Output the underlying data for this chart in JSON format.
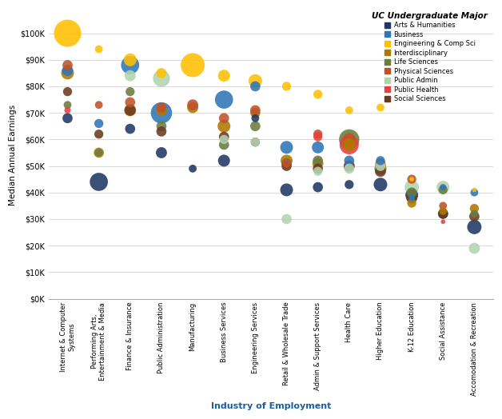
{
  "title": "UC Undergraduate Major",
  "xlabel": "Industry of Employment",
  "ylabel": "Median Annual Earnings",
  "background_color": "#ffffff",
  "industries": [
    "Internet & Computer\nSystems",
    "Performing Arts,\nEntertainment & Media",
    "Finance & Insurance",
    "Public Administration",
    "Manufacturing",
    "Business Services",
    "Engineering Services",
    "Retail & Wholesale Trade",
    "Admin & Support Services",
    "Health Care",
    "Higher Education",
    "K-12 Education",
    "Social Assistance",
    "Accomodation & Recreation"
  ],
  "majors": [
    "Arts & Humanities",
    "Business",
    "Engineering & Comp Sci",
    "Interdisciplinary",
    "Life Sciences",
    "Physical Sciences",
    "Public Admin",
    "Public Health",
    "Social Sciences"
  ],
  "colors": {
    "Arts & Humanities": "#1f3864",
    "Business": "#2e75b6",
    "Engineering & Comp Sci": "#ffc000",
    "Interdisciplinary": "#b07800",
    "Life Sciences": "#6b7c3e",
    "Physical Sciences": "#c0522a",
    "Public Admin": "#b2d4b0",
    "Public Health": "#e84040",
    "Social Sciences": "#6b3a1f"
  },
  "bubbles": [
    {
      "industry": 0,
      "major": "Engineering & Comp Sci",
      "wage": 100000,
      "size": 36
    },
    {
      "industry": 0,
      "major": "Physical Sciences",
      "wage": 88000,
      "size": 5
    },
    {
      "industry": 0,
      "major": "Business",
      "wage": 86000,
      "size": 6
    },
    {
      "industry": 0,
      "major": "Interdisciplinary",
      "wage": 85000,
      "size": 8
    },
    {
      "industry": 0,
      "major": "Social Sciences",
      "wage": 78000,
      "size": 4
    },
    {
      "industry": 0,
      "major": "Life Sciences",
      "wage": 73000,
      "size": 3
    },
    {
      "industry": 0,
      "major": "Public Health",
      "wage": 71000,
      "size": 2
    },
    {
      "industry": 0,
      "major": "Arts & Humanities",
      "wage": 68000,
      "size": 5
    },
    {
      "industry": 1,
      "major": "Engineering & Comp Sci",
      "wage": 94000,
      "size": 3
    },
    {
      "industry": 1,
      "major": "Interdisciplinary",
      "wage": 55000,
      "size": 5
    },
    {
      "industry": 1,
      "major": "Business",
      "wage": 66000,
      "size": 4
    },
    {
      "industry": 1,
      "major": "Physical Sciences",
      "wage": 73000,
      "size": 3
    },
    {
      "industry": 1,
      "major": "Arts & Humanities",
      "wage": 44000,
      "size": 16
    },
    {
      "industry": 1,
      "major": "Life Sciences",
      "wage": 55000,
      "size": 3
    },
    {
      "industry": 1,
      "major": "Social Sciences",
      "wage": 62000,
      "size": 4
    },
    {
      "industry": 2,
      "major": "Engineering & Comp Sci",
      "wage": 90000,
      "size": 8
    },
    {
      "industry": 2,
      "major": "Business",
      "wage": 88000,
      "size": 16
    },
    {
      "industry": 2,
      "major": "Interdisciplinary",
      "wage": 71000,
      "size": 7
    },
    {
      "industry": 2,
      "major": "Physical Sciences",
      "wage": 74000,
      "size": 5
    },
    {
      "industry": 2,
      "major": "Social Sciences",
      "wage": 71000,
      "size": 6
    },
    {
      "industry": 2,
      "major": "Life Sciences",
      "wage": 78000,
      "size": 4
    },
    {
      "industry": 2,
      "major": "Public Admin",
      "wage": 84000,
      "size": 6
    },
    {
      "industry": 2,
      "major": "Arts & Humanities",
      "wage": 64000,
      "size": 5
    },
    {
      "industry": 3,
      "major": "Engineering & Comp Sci",
      "wage": 85000,
      "size": 5
    },
    {
      "industry": 3,
      "major": "Business",
      "wage": 70000,
      "size": 22
    },
    {
      "industry": 3,
      "major": "Public Admin",
      "wage": 83000,
      "size": 14
    },
    {
      "industry": 3,
      "major": "Interdisciplinary",
      "wage": 71000,
      "size": 6
    },
    {
      "industry": 3,
      "major": "Physical Sciences",
      "wage": 72000,
      "size": 5
    },
    {
      "industry": 3,
      "major": "Life Sciences",
      "wage": 65000,
      "size": 5
    },
    {
      "industry": 3,
      "major": "Social Sciences",
      "wage": 63000,
      "size": 5
    },
    {
      "industry": 3,
      "major": "Arts & Humanities",
      "wage": 55000,
      "size": 6
    },
    {
      "industry": 4,
      "major": "Engineering & Comp Sci",
      "wage": 88000,
      "size": 28
    },
    {
      "industry": 4,
      "major": "Interdisciplinary",
      "wage": 72000,
      "size": 6
    },
    {
      "industry": 4,
      "major": "Physical Sciences",
      "wage": 73000,
      "size": 6
    },
    {
      "industry": 4,
      "major": "Arts & Humanities",
      "wage": 49000,
      "size": 3
    },
    {
      "industry": 5,
      "major": "Engineering & Comp Sci",
      "wage": 84000,
      "size": 7
    },
    {
      "industry": 5,
      "major": "Business",
      "wage": 75000,
      "size": 16
    },
    {
      "industry": 5,
      "major": "Interdisciplinary",
      "wage": 65000,
      "size": 8
    },
    {
      "industry": 5,
      "major": "Physical Sciences",
      "wage": 68000,
      "size": 5
    },
    {
      "industry": 5,
      "major": "Life Sciences",
      "wage": 58000,
      "size": 5
    },
    {
      "industry": 5,
      "major": "Social Sciences",
      "wage": 61000,
      "size": 5
    },
    {
      "industry": 5,
      "major": "Arts & Humanities",
      "wage": 52000,
      "size": 7
    },
    {
      "industry": 5,
      "major": "Public Admin",
      "wage": 60000,
      "size": 4
    },
    {
      "industry": 6,
      "major": "Engineering & Comp Sci",
      "wage": 82000,
      "size": 9
    },
    {
      "industry": 6,
      "major": "Business",
      "wage": 80000,
      "size": 5
    },
    {
      "industry": 6,
      "major": "Interdisciplinary",
      "wage": 70000,
      "size": 5
    },
    {
      "industry": 6,
      "major": "Physical Sciences",
      "wage": 71000,
      "size": 5
    },
    {
      "industry": 6,
      "major": "Life Sciences",
      "wage": 65000,
      "size": 5
    },
    {
      "industry": 6,
      "major": "Social Sciences",
      "wage": 59000,
      "size": 4
    },
    {
      "industry": 6,
      "major": "Arts & Humanities",
      "wage": 68000,
      "size": 3
    },
    {
      "industry": 6,
      "major": "Public Admin",
      "wage": 59000,
      "size": 4
    },
    {
      "industry": 7,
      "major": "Engineering & Comp Sci",
      "wage": 80000,
      "size": 4
    },
    {
      "industry": 7,
      "major": "Business",
      "wage": 57000,
      "size": 8
    },
    {
      "industry": 7,
      "major": "Interdisciplinary",
      "wage": 52000,
      "size": 7
    },
    {
      "industry": 7,
      "major": "Life Sciences",
      "wage": 51000,
      "size": 5
    },
    {
      "industry": 7,
      "major": "Physical Sciences",
      "wage": 51000,
      "size": 4
    },
    {
      "industry": 7,
      "major": "Arts & Humanities",
      "wage": 41000,
      "size": 8
    },
    {
      "industry": 7,
      "major": "Social Sciences",
      "wage": 50000,
      "size": 5
    },
    {
      "industry": 7,
      "major": "Public Admin",
      "wage": 30000,
      "size": 5
    },
    {
      "industry": 8,
      "major": "Engineering & Comp Sci",
      "wage": 77000,
      "size": 4
    },
    {
      "industry": 8,
      "major": "Business",
      "wage": 57000,
      "size": 7
    },
    {
      "industry": 8,
      "major": "Interdisciplinary",
      "wage": 51000,
      "size": 6
    },
    {
      "industry": 8,
      "major": "Life Sciences",
      "wage": 52000,
      "size": 5
    },
    {
      "industry": 8,
      "major": "Physical Sciences",
      "wage": 62000,
      "size": 4
    },
    {
      "industry": 8,
      "major": "Arts & Humanities",
      "wage": 42000,
      "size": 5
    },
    {
      "industry": 8,
      "major": "Social Sciences",
      "wage": 49000,
      "size": 5
    },
    {
      "industry": 8,
      "major": "Public Health",
      "wage": 61000,
      "size": 4
    },
    {
      "industry": 8,
      "major": "Public Admin",
      "wage": 48000,
      "size": 4
    },
    {
      "industry": 9,
      "major": "Engineering & Comp Sci",
      "wage": 71000,
      "size": 3
    },
    {
      "industry": 9,
      "major": "Business",
      "wage": 52000,
      "size": 5
    },
    {
      "industry": 9,
      "major": "Life Sciences",
      "wage": 60000,
      "size": 20
    },
    {
      "industry": 9,
      "major": "Physical Sciences",
      "wage": 60000,
      "size": 8
    },
    {
      "industry": 9,
      "major": "Public Health",
      "wage": 58000,
      "size": 18
    },
    {
      "industry": 9,
      "major": "Interdisciplinary",
      "wage": 58000,
      "size": 8
    },
    {
      "industry": 9,
      "major": "Arts & Humanities",
      "wage": 43000,
      "size": 4
    },
    {
      "industry": 9,
      "major": "Social Sciences",
      "wage": 50000,
      "size": 6
    },
    {
      "industry": 9,
      "major": "Public Admin",
      "wage": 49000,
      "size": 5
    },
    {
      "industry": 10,
      "major": "Engineering & Comp Sci",
      "wage": 72000,
      "size": 3
    },
    {
      "industry": 10,
      "major": "Business",
      "wage": 52000,
      "size": 4
    },
    {
      "industry": 10,
      "major": "Life Sciences",
      "wage": 49000,
      "size": 7
    },
    {
      "industry": 10,
      "major": "Physical Sciences",
      "wage": 51000,
      "size": 5
    },
    {
      "industry": 10,
      "major": "Interdisciplinary",
      "wage": 50000,
      "size": 6
    },
    {
      "industry": 10,
      "major": "Arts & Humanities",
      "wage": 43000,
      "size": 9
    },
    {
      "industry": 10,
      "major": "Social Sciences",
      "wage": 48000,
      "size": 6
    },
    {
      "industry": 10,
      "major": "Public Admin",
      "wage": 50000,
      "size": 5
    },
    {
      "industry": 11,
      "major": "Engineering & Comp Sci",
      "wage": 45000,
      "size": 1
    },
    {
      "industry": 11,
      "major": "Business",
      "wage": 38000,
      "size": 2
    },
    {
      "industry": 11,
      "major": "Life Sciences",
      "wage": 40000,
      "size": 5
    },
    {
      "industry": 11,
      "major": "Physical Sciences",
      "wage": 45000,
      "size": 4
    },
    {
      "industry": 11,
      "major": "Interdisciplinary",
      "wage": 36000,
      "size": 4
    },
    {
      "industry": 11,
      "major": "Arts & Humanities",
      "wage": 39000,
      "size": 8
    },
    {
      "industry": 11,
      "major": "Social Sciences",
      "wage": 38000,
      "size": 6
    },
    {
      "industry": 11,
      "major": "Public Admin",
      "wage": 42000,
      "size": 10
    },
    {
      "industry": 12,
      "major": "Business",
      "wage": 42000,
      "size": 2
    },
    {
      "industry": 12,
      "major": "Life Sciences",
      "wage": 41000,
      "size": 4
    },
    {
      "industry": 12,
      "major": "Physical Sciences",
      "wage": 35000,
      "size": 3
    },
    {
      "industry": 12,
      "major": "Interdisciplinary",
      "wage": 33000,
      "size": 3
    },
    {
      "industry": 12,
      "major": "Arts & Humanities",
      "wage": 32000,
      "size": 5
    },
    {
      "industry": 12,
      "major": "Social Sciences",
      "wage": 32000,
      "size": 5
    },
    {
      "industry": 12,
      "major": "Public Admin",
      "wage": 42000,
      "size": 8
    },
    {
      "industry": 12,
      "major": "Public Health",
      "wage": 29000,
      "size": 1
    },
    {
      "industry": 13,
      "major": "Business",
      "wage": 40000,
      "size": 3
    },
    {
      "industry": 13,
      "major": "Life Sciences",
      "wage": 32000,
      "size": 3
    },
    {
      "industry": 13,
      "major": "Interdisciplinary",
      "wage": 34000,
      "size": 4
    },
    {
      "industry": 13,
      "major": "Arts & Humanities",
      "wage": 27000,
      "size": 10
    },
    {
      "industry": 13,
      "major": "Social Sciences",
      "wage": 31000,
      "size": 5
    },
    {
      "industry": 13,
      "major": "Public Admin",
      "wage": 19000,
      "size": 6
    },
    {
      "industry": 13,
      "major": "Engineering & Comp Sci",
      "wage": 41000,
      "size": 1
    }
  ]
}
